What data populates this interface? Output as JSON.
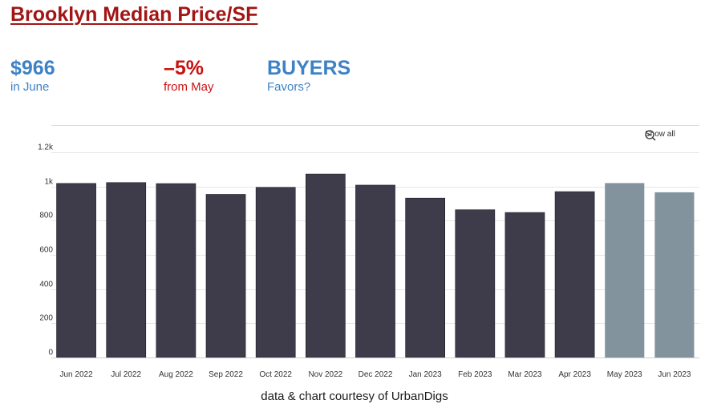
{
  "header": {
    "title": "Brooklyn Median Price/SF"
  },
  "stats": [
    {
      "value": "$966",
      "caption": "in June",
      "color": "#3d82c4"
    },
    {
      "value": "–5%",
      "caption": "from May",
      "color": "#cc1111"
    },
    {
      "value": "BUYERS",
      "caption": "Favors?",
      "color": "#3d82c4"
    }
  ],
  "controls": {
    "show_all_label": "Show all",
    "icon": "zoom-out-icon"
  },
  "footer": {
    "credit": "data & chart courtesy of UrbanDigs"
  },
  "chart_data": {
    "type": "bar",
    "title": "",
    "xlabel": "",
    "ylabel": "",
    "categories": [
      "Jun 2022",
      "Jul 2022",
      "Aug 2022",
      "Sep 2022",
      "Oct 2022",
      "Nov 2022",
      "Dec 2022",
      "Jan 2023",
      "Feb 2023",
      "Mar 2023",
      "Apr 2023",
      "May 2023",
      "Jun 2023"
    ],
    "values": [
      1018,
      1023,
      1017,
      954,
      995,
      1073,
      1008,
      932,
      864,
      848,
      970,
      1020,
      966
    ],
    "ylim": [
      0,
      1200
    ],
    "yticks": [
      0,
      200,
      400,
      600,
      800,
      1000,
      1200
    ],
    "yticklabels": [
      "0",
      "200",
      "400",
      "600",
      "800",
      "1k",
      "1.2k"
    ],
    "grid": true,
    "colors": {
      "bar": "#3e3b4a",
      "highlight": "#82939e"
    },
    "highlighted": [
      "May 2023",
      "Jun 2023"
    ]
  }
}
